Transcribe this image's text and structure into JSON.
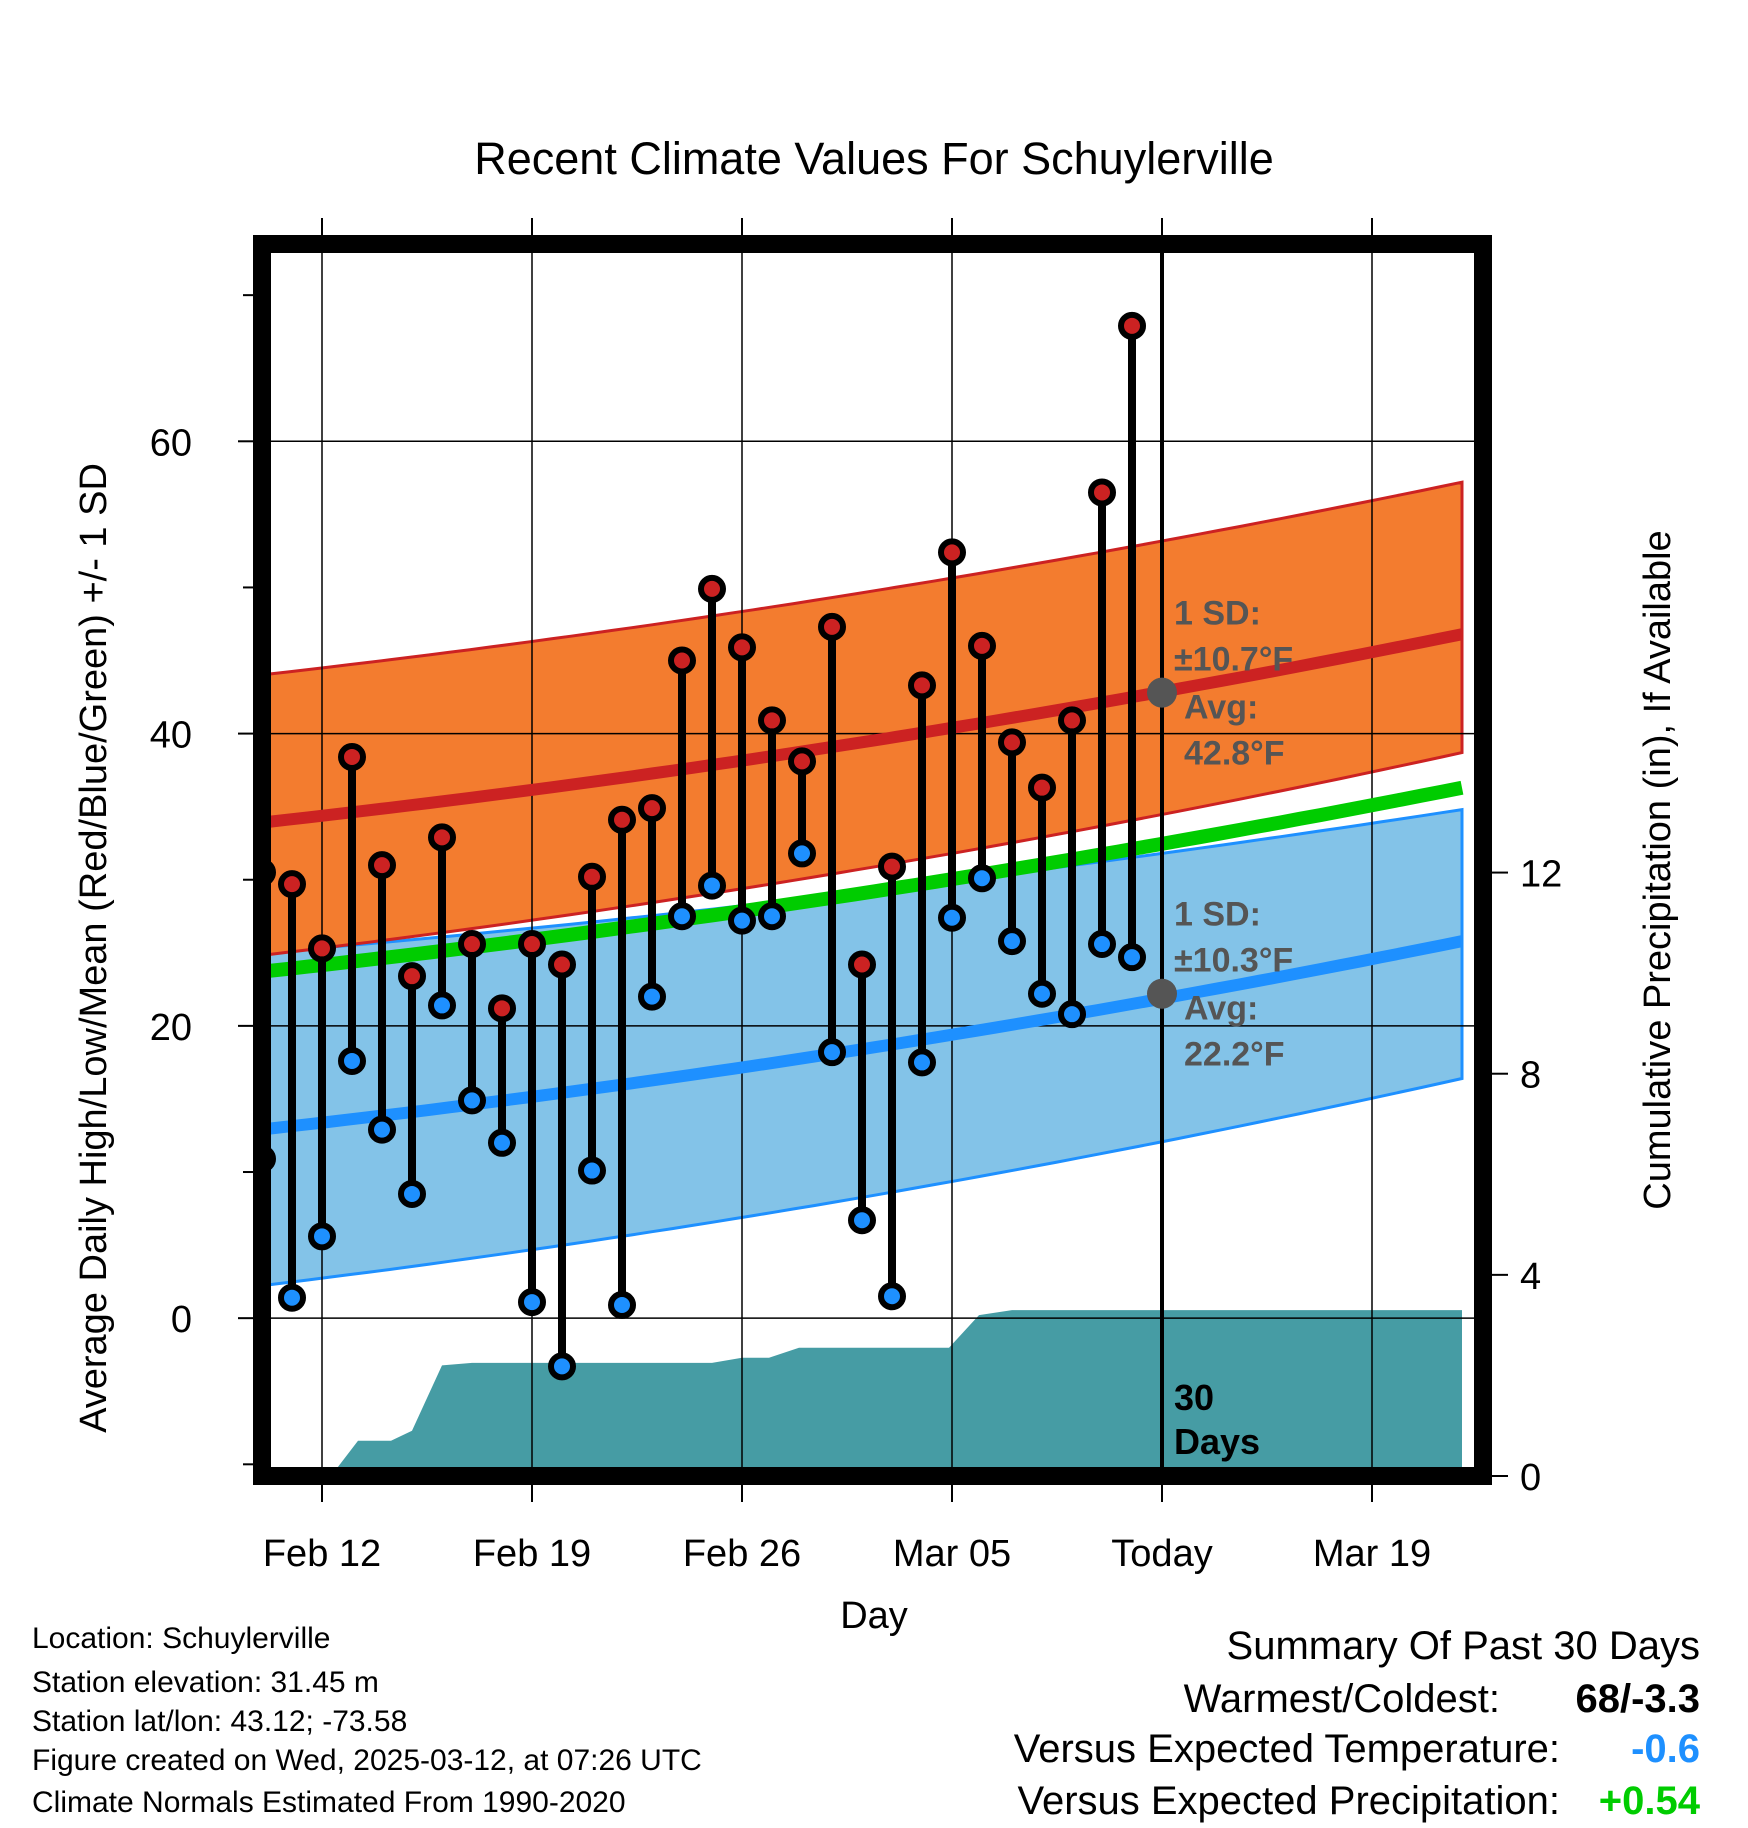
{
  "chart_data": {
    "type": "line",
    "title": "Recent Climate Values For Schuylerville",
    "xlabel": "Day",
    "ylabel_left": "Average Daily High/Low/Mean (Red/Blue/Green) +/- 1 SD",
    "ylabel_right": "Cumulative Precipitation (in), If Available",
    "x_ticks": [
      {
        "day": 3,
        "label": "Feb 12"
      },
      {
        "day": 10,
        "label": "Feb 19"
      },
      {
        "day": 17,
        "label": "Feb 26"
      },
      {
        "day": 24,
        "label": "Mar 05"
      },
      {
        "day": 31,
        "label": "Today"
      },
      {
        "day": 38,
        "label": "Mar 19"
      }
    ],
    "x_range": [
      0.5,
      41
    ],
    "ylim_left": [
      -10.8,
      73.5
    ],
    "ylim_right": [
      0,
      24.5
    ],
    "y_ticks_left": [
      0,
      20,
      40,
      60
    ],
    "y_ticks_right": [
      0,
      4,
      8,
      12
    ],
    "grid": true,
    "observed": {
      "days": [
        1,
        2,
        3,
        4,
        5,
        6,
        7,
        8,
        9,
        10,
        11,
        12,
        13,
        14,
        15,
        16,
        17,
        18,
        19,
        20,
        21,
        22,
        23,
        24,
        25,
        26,
        27,
        28,
        29,
        30
      ],
      "high": [
        30.5,
        29.7,
        25.3,
        38.4,
        31.0,
        23.4,
        32.9,
        25.6,
        21.2,
        25.6,
        24.2,
        30.2,
        34.1,
        34.9,
        45.0,
        49.9,
        45.9,
        40.9,
        38.1,
        47.3,
        24.2,
        30.9,
        43.3,
        52.4,
        46.0,
        39.4,
        36.3,
        40.9,
        56.5,
        67.9
      ],
      "low": [
        10.9,
        1.4,
        5.6,
        17.6,
        12.9,
        8.5,
        21.4,
        14.9,
        12.0,
        1.1,
        -3.3,
        10.1,
        0.9,
        22.0,
        27.5,
        29.6,
        27.2,
        27.5,
        31.8,
        18.2,
        6.7,
        1.5,
        17.5,
        27.4,
        30.1,
        25.8,
        22.2,
        20.8,
        25.6,
        24.7
      ]
    },
    "normals": {
      "days": [
        0.5,
        41
      ],
      "high_mean": [
        33.8,
        46.8
      ],
      "high_sd_upper": [
        43.9,
        57.2
      ],
      "high_sd_lower": [
        24.7,
        38.7
      ],
      "low_mean": [
        12.8,
        25.8
      ],
      "low_sd_upper": [
        24.9,
        34.8
      ],
      "low_sd_lower": [
        2.1,
        16.4
      ],
      "mean": [
        23.6,
        36.3
      ]
    },
    "precipitation": {
      "days": [
        3.3,
        4.2,
        5.3,
        6.0,
        7.0,
        8.0,
        9.0,
        10.0,
        11.0,
        12.0,
        13.0,
        14.0,
        15.0,
        16.0,
        17.0,
        17.9,
        18.9,
        20.0,
        21.0,
        22.0,
        23.0,
        23.9,
        24.9,
        26.0,
        27.0,
        28.0,
        29.0,
        30.0,
        31.0,
        41.0
      ],
      "cumulative_in": [
        0,
        0.7,
        0.7,
        0.9,
        2.2,
        2.25,
        2.25,
        2.25,
        2.25,
        2.25,
        2.25,
        2.25,
        2.25,
        2.25,
        2.35,
        2.35,
        2.55,
        2.55,
        2.55,
        2.55,
        2.55,
        2.55,
        3.2,
        3.3,
        3.3,
        3.3,
        3.3,
        3.3,
        3.3,
        3.3
      ]
    },
    "annotations": {
      "high": {
        "day": 31,
        "value": 42.8,
        "sd_title": "1 SD:",
        "sd_value": "±10.7°F",
        "avg_title": "Avg:",
        "avg_value": "42.8°F"
      },
      "low": {
        "day": 31,
        "value": 22.2,
        "sd_title": "1 SD:",
        "sd_value": "±10.3°F",
        "avg_title": "Avg:",
        "avg_value": "22.2°F"
      },
      "window": "30 Days"
    },
    "colors": {
      "high_band": "#f37c2f",
      "high_line": "#cc2222",
      "low_band": "#83c3e8",
      "low_line": "#1e90ff",
      "mean_line": "#00cc00",
      "precip": "#469ca4",
      "annotation": "#555555",
      "high_dot": "#cc2222",
      "low_dot": "#1e90ff"
    }
  },
  "info": {
    "location": "Location: Schuylerville",
    "elevation": "Station elevation: 31.45 m",
    "latlon": "Station lat/lon: 43.12; -73.58",
    "created": "Figure created on Wed, 2025-03-12, at 07:26 UTC",
    "normals": "Climate Normals Estimated From 1990-2020"
  },
  "summary": {
    "title": "Summary Of Past 30 Days",
    "warmest_label": "Warmest/Coldest:",
    "warmest_value": "68/-3.3",
    "temp_label": "Versus Expected Temperature:",
    "temp_value": "-0.6",
    "temp_color": "#1e90ff",
    "precip_label": "Versus Expected Precipitation:",
    "precip_value": "+0.54",
    "precip_color": "#00cc00"
  }
}
